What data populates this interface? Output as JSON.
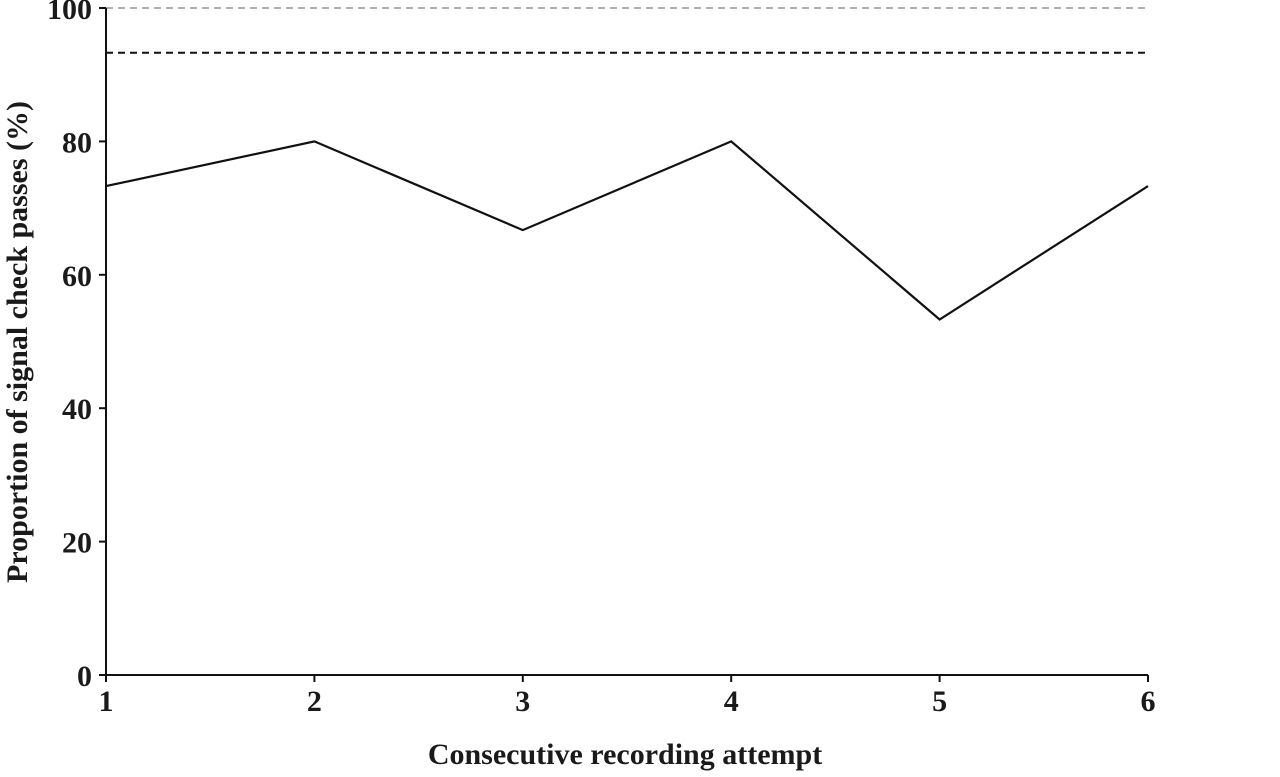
{
  "chart_data": {
    "type": "line",
    "title": "",
    "xlabel": "Consecutive recording attempt",
    "ylabel": "Proportion of signal check passes (%)",
    "x": [
      1,
      2,
      3,
      4,
      5,
      6
    ],
    "x_tick_labels": [
      "1",
      "2",
      "3",
      "4",
      "5",
      "6"
    ],
    "y_ticks": [
      0,
      20,
      40,
      60,
      80,
      100
    ],
    "y_tick_labels": [
      "0",
      "20",
      "40",
      "60",
      "80",
      "100"
    ],
    "xlim": [
      1,
      6
    ],
    "ylim": [
      0,
      100
    ],
    "grid": false,
    "legend": "none",
    "series": [
      {
        "values": [
          73.3,
          80,
          66.7,
          80,
          53.3,
          73.3
        ],
        "color": "#111111",
        "style": "solid"
      }
    ],
    "reference_lines": [
      {
        "y": 100,
        "color": "#b0b0b0",
        "style": "dashed"
      },
      {
        "y": 93.3,
        "color": "#111111",
        "style": "dashed"
      }
    ]
  }
}
